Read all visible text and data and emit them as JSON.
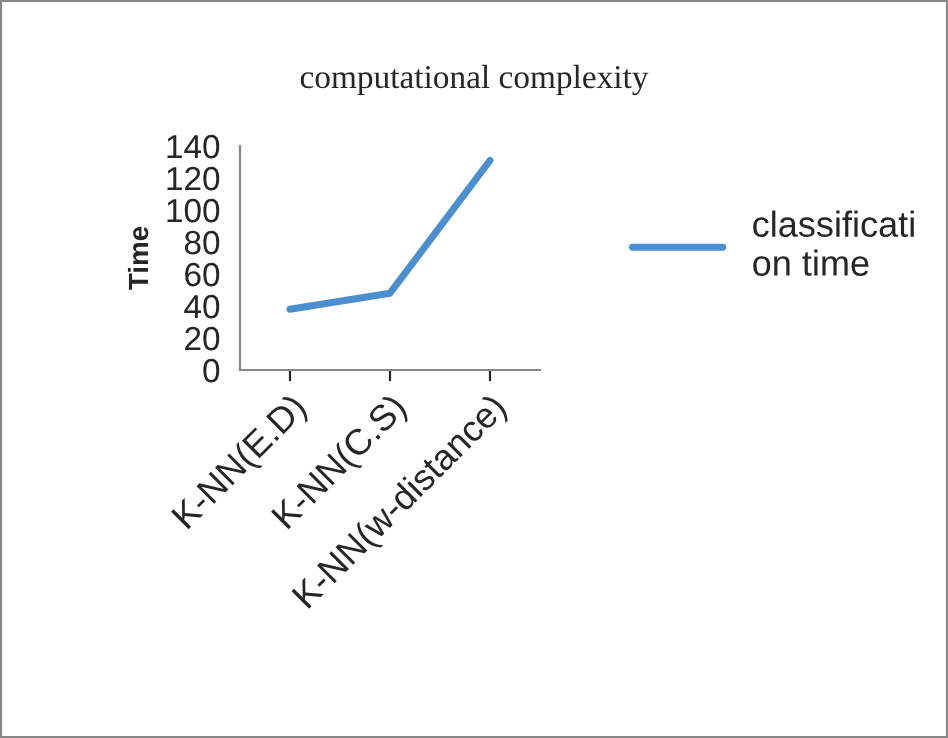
{
  "chart_data": {
    "type": "line",
    "title": "computational complexity",
    "ylabel": "Time",
    "categories": [
      "K-NN(E.D)",
      "K-NN(C.S)",
      "K-NN(w-distance)"
    ],
    "series": [
      {
        "name": "classification time",
        "color": "#4a90d0",
        "values": [
          38,
          48,
          131
        ]
      }
    ],
    "ylim": [
      0,
      140
    ],
    "yticks": [
      0,
      20,
      40,
      60,
      80,
      100,
      120,
      140
    ],
    "grid": false,
    "legend": "right",
    "marker": "none",
    "line_style": "solid"
  }
}
